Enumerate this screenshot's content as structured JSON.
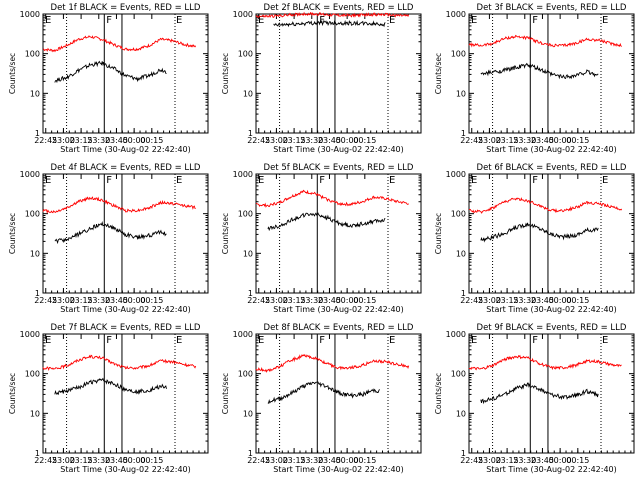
{
  "figure": {
    "xlabel": "Start Time (30-Aug-02 22:42:40)",
    "ylabel": "Counts/sec",
    "x_ticks": [
      "22:45",
      "23:00",
      "23:15",
      "23:30",
      "23:45",
      "00:00",
      "00:15"
    ],
    "y_ticks": [
      "1",
      "10",
      "100",
      "1000"
    ],
    "markers": {
      "E": "E",
      "F": "F"
    },
    "colors": {
      "events": "#000000",
      "lld": "#ff0000",
      "axis": "#000000"
    }
  },
  "chart_data": [
    {
      "type": "line",
      "title": "Det 1f BLACK = Events, RED = LLD",
      "x_unit": "minutes after 22:42:40",
      "ylim": [
        1,
        1000
      ],
      "yscale": "log",
      "series": [
        {
          "name": "LLD",
          "x": [
            0,
            10,
            20,
            30,
            40,
            50,
            60,
            70,
            80,
            90,
            100,
            110,
            120,
            130
          ],
          "values": [
            130,
            120,
            160,
            230,
            270,
            230,
            170,
            130,
            130,
            160,
            230,
            210,
            170,
            150
          ]
        },
        {
          "name": "Events",
          "x": [
            10,
            20,
            30,
            40,
            50,
            60,
            70,
            80,
            90,
            100,
            105
          ],
          "values": [
            21,
            25,
            38,
            52,
            58,
            42,
            28,
            23,
            28,
            40,
            35
          ]
        }
      ]
    },
    {
      "type": "line",
      "title": "Det 2f BLACK = Events, RED = LLD",
      "x_unit": "minutes after 22:42:40",
      "ylim": [
        1,
        1000
      ],
      "yscale": "log",
      "series": [
        {
          "name": "LLD",
          "x": [
            0,
            10,
            20,
            30,
            40,
            50,
            60,
            70,
            80,
            90,
            100,
            110,
            120,
            130
          ],
          "values": [
            880,
            870,
            900,
            960,
            1000,
            1000,
            970,
            930,
            920,
            940,
            970,
            960,
            920,
            900
          ]
        },
        {
          "name": "Events",
          "x": [
            15,
            25,
            35,
            45,
            55,
            65,
            75,
            85,
            95,
            105,
            110
          ],
          "values": [
            520,
            540,
            560,
            590,
            600,
            600,
            590,
            580,
            570,
            560,
            550
          ]
        }
      ]
    },
    {
      "type": "line",
      "title": "Det 3f BLACK = Events, RED = LLD",
      "x_unit": "minutes after 22:42:40",
      "ylim": [
        1,
        1000
      ],
      "yscale": "log",
      "series": [
        {
          "name": "LLD",
          "x": [
            0,
            10,
            20,
            30,
            40,
            50,
            60,
            70,
            80,
            90,
            100,
            110,
            120,
            130
          ],
          "values": [
            170,
            160,
            180,
            240,
            270,
            250,
            190,
            160,
            160,
            180,
            230,
            220,
            180,
            160
          ]
        },
        {
          "name": "Events",
          "x": [
            10,
            20,
            30,
            40,
            50,
            60,
            70,
            80,
            90,
            100,
            110
          ],
          "values": [
            30,
            34,
            38,
            45,
            52,
            40,
            30,
            26,
            28,
            35,
            28
          ]
        }
      ]
    },
    {
      "type": "line",
      "title": "Det 4f BLACK = Events, RED = LLD",
      "x_unit": "minutes after 22:42:40",
      "ylim": [
        1,
        1000
      ],
      "yscale": "log",
      "series": [
        {
          "name": "LLD",
          "x": [
            0,
            10,
            20,
            30,
            40,
            50,
            60,
            70,
            80,
            90,
            100,
            110,
            120,
            130
          ],
          "values": [
            120,
            110,
            140,
            200,
            250,
            220,
            160,
            120,
            120,
            140,
            190,
            180,
            160,
            140
          ]
        },
        {
          "name": "Events",
          "x": [
            10,
            20,
            30,
            40,
            50,
            60,
            70,
            80,
            90,
            100,
            105
          ],
          "values": [
            20,
            22,
            30,
            42,
            55,
            44,
            30,
            25,
            28,
            35,
            30
          ]
        }
      ]
    },
    {
      "type": "line",
      "title": "Det 5f BLACK = Events, RED = LLD",
      "x_unit": "minutes after 22:42:40",
      "ylim": [
        1,
        1000
      ],
      "yscale": "log",
      "series": [
        {
          "name": "LLD",
          "x": [
            0,
            10,
            20,
            30,
            40,
            50,
            60,
            70,
            80,
            90,
            100,
            110,
            120,
            130
          ],
          "values": [
            170,
            160,
            190,
            270,
            360,
            320,
            230,
            180,
            170,
            200,
            260,
            240,
            200,
            180
          ]
        },
        {
          "name": "Events",
          "x": [
            10,
            20,
            30,
            40,
            50,
            60,
            70,
            80,
            90,
            100,
            110
          ],
          "values": [
            42,
            48,
            70,
            90,
            98,
            80,
            58,
            50,
            55,
            65,
            70
          ]
        }
      ]
    },
    {
      "type": "line",
      "title": "Det 6f BLACK = Events, RED = LLD",
      "x_unit": "minutes after 22:42:40",
      "ylim": [
        1,
        1000
      ],
      "yscale": "log",
      "series": [
        {
          "name": "LLD",
          "x": [
            0,
            10,
            20,
            30,
            40,
            50,
            60,
            70,
            80,
            90,
            100,
            110,
            120,
            130
          ],
          "values": [
            120,
            110,
            140,
            200,
            240,
            210,
            160,
            120,
            120,
            140,
            190,
            180,
            150,
            130
          ]
        },
        {
          "name": "Events",
          "x": [
            10,
            20,
            30,
            40,
            50,
            60,
            70,
            80,
            90,
            100,
            110
          ],
          "values": [
            22,
            25,
            32,
            45,
            55,
            42,
            30,
            26,
            28,
            38,
            40
          ]
        }
      ]
    },
    {
      "type": "line",
      "title": "Det 7f BLACK = Events, RED = LLD",
      "x_unit": "minutes after 22:42:40",
      "ylim": [
        1,
        1000
      ],
      "yscale": "log",
      "series": [
        {
          "name": "LLD",
          "x": [
            0,
            10,
            20,
            30,
            40,
            50,
            60,
            70,
            80,
            90,
            100,
            110,
            120,
            130
          ],
          "values": [
            140,
            130,
            160,
            220,
            270,
            250,
            180,
            140,
            140,
            160,
            210,
            200,
            170,
            150
          ]
        },
        {
          "name": "Events",
          "x": [
            10,
            20,
            30,
            40,
            50,
            60,
            70,
            80,
            90,
            100,
            105
          ],
          "values": [
            32,
            36,
            45,
            60,
            68,
            55,
            40,
            35,
            38,
            48,
            45
          ]
        }
      ]
    },
    {
      "type": "line",
      "title": "Det 8f BLACK = Events, RED = LLD",
      "x_unit": "minutes after 22:42:40",
      "ylim": [
        1,
        1000
      ],
      "yscale": "log",
      "series": [
        {
          "name": "LLD",
          "x": [
            0,
            10,
            20,
            30,
            40,
            50,
            60,
            70,
            80,
            90,
            100,
            110,
            120,
            130
          ],
          "values": [
            130,
            120,
            150,
            220,
            280,
            250,
            180,
            140,
            140,
            160,
            210,
            200,
            170,
            150
          ]
        },
        {
          "name": "Events",
          "x": [
            10,
            20,
            30,
            40,
            50,
            60,
            70,
            80,
            90,
            100,
            105
          ],
          "values": [
            20,
            23,
            32,
            48,
            60,
            48,
            33,
            28,
            30,
            38,
            36
          ]
        }
      ]
    },
    {
      "type": "line",
      "title": "Det 9f BLACK = Events, RED = LLD",
      "x_unit": "minutes after 22:42:40",
      "ylim": [
        1,
        1000
      ],
      "yscale": "log",
      "series": [
        {
          "name": "LLD",
          "x": [
            0,
            10,
            20,
            30,
            40,
            50,
            60,
            70,
            80,
            90,
            100,
            110,
            120,
            130
          ],
          "values": [
            140,
            130,
            160,
            230,
            270,
            250,
            180,
            140,
            140,
            160,
            210,
            200,
            170,
            150
          ]
        },
        {
          "name": "Events",
          "x": [
            10,
            20,
            30,
            40,
            50,
            60,
            70,
            80,
            90,
            100,
            110
          ],
          "values": [
            20,
            23,
            30,
            42,
            52,
            40,
            30,
            25,
            28,
            36,
            28
          ]
        }
      ]
    }
  ]
}
